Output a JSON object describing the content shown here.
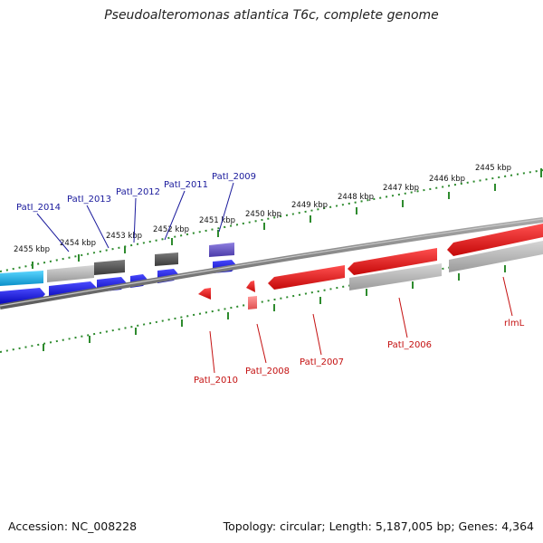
{
  "title": "Pseudoalteromonas atlantica T6c, complete genome",
  "footer": {
    "accession": "Accession: NC_008228",
    "summary": "Topology: circular; Length: 5,187,005 bp; Genes: 4,364"
  },
  "colors": {
    "backbone": "#7d7d7d",
    "tick": "#2e8b2e",
    "forward_label": "#1a1a9c",
    "reverse_label": "#c41010",
    "cds_forward": "#1414e6",
    "cds_reverse": "#ee1111",
    "cds_gray": "#aaaaaa",
    "cds_dark": "#555555",
    "cds_cyan": "#1ab4ec",
    "cds_purple": "#6a5acd"
  },
  "kbp_labels": [
    "2455 kbp",
    "2454 kbp",
    "2453 kbp",
    "2452 kbp",
    "2451 kbp",
    "2450 kbp",
    "2449 kbp",
    "2448 kbp",
    "2447 kbp",
    "2446 kbp",
    "2445 kbp"
  ],
  "gene_labels": {
    "forward": [
      "PatI_2014",
      "PatI_2013",
      "PatI_2012",
      "PatI_2011",
      "PatI_2009"
    ],
    "reverse": [
      "PatI_2010",
      "PatI_2008",
      "PatI_2007",
      "PatI_2006",
      "rlmL"
    ]
  }
}
